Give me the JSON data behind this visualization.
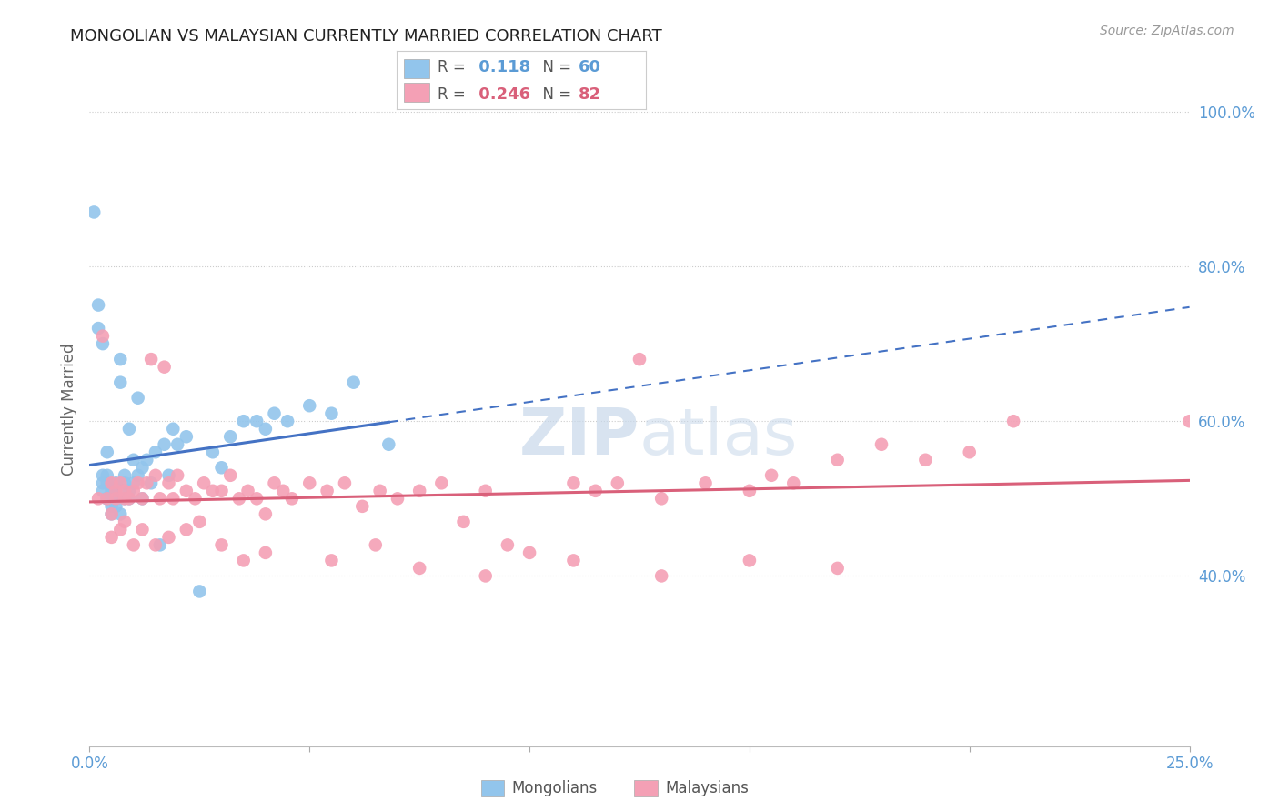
{
  "title": "MONGOLIAN VS MALAYSIAN CURRENTLY MARRIED CORRELATION CHART",
  "source": "Source: ZipAtlas.com",
  "ylabel": "Currently Married",
  "right_yticks": [
    "40.0%",
    "60.0%",
    "80.0%",
    "100.0%"
  ],
  "right_ytick_vals": [
    0.4,
    0.6,
    0.8,
    1.0
  ],
  "mongolian_R": 0.118,
  "mongolian_N": 60,
  "malaysian_R": 0.246,
  "malaysian_N": 82,
  "mongolian_color": "#92C5EC",
  "malaysian_color": "#F4A0B5",
  "mongolian_line_color": "#4472C4",
  "malaysian_line_color": "#D9607A",
  "background_color": "#FFFFFF",
  "grid_color": "#CCCCCC",
  "watermark_color": "#C8D8EA",
  "title_color": "#222222",
  "right_axis_color": "#5B9BD5",
  "xlim": [
    0.0,
    0.25
  ],
  "ylim": [
    0.18,
    1.05
  ],
  "mong_x": [
    0.001,
    0.002,
    0.002,
    0.003,
    0.003,
    0.003,
    0.003,
    0.004,
    0.004,
    0.004,
    0.004,
    0.004,
    0.005,
    0.005,
    0.005,
    0.005,
    0.005,
    0.005,
    0.006,
    0.006,
    0.006,
    0.006,
    0.006,
    0.007,
    0.007,
    0.007,
    0.008,
    0.008,
    0.008,
    0.009,
    0.009,
    0.009,
    0.01,
    0.01,
    0.011,
    0.011,
    0.012,
    0.012,
    0.013,
    0.014,
    0.015,
    0.016,
    0.017,
    0.018,
    0.019,
    0.02,
    0.022,
    0.025,
    0.028,
    0.03,
    0.032,
    0.035,
    0.038,
    0.04,
    0.042,
    0.045,
    0.05,
    0.055,
    0.06,
    0.068
  ],
  "mong_y": [
    0.87,
    0.75,
    0.72,
    0.53,
    0.52,
    0.51,
    0.7,
    0.5,
    0.52,
    0.56,
    0.53,
    0.5,
    0.5,
    0.51,
    0.5,
    0.5,
    0.49,
    0.48,
    0.5,
    0.51,
    0.52,
    0.5,
    0.49,
    0.68,
    0.65,
    0.48,
    0.5,
    0.53,
    0.52,
    0.51,
    0.5,
    0.59,
    0.52,
    0.55,
    0.53,
    0.63,
    0.5,
    0.54,
    0.55,
    0.52,
    0.56,
    0.44,
    0.57,
    0.53,
    0.59,
    0.57,
    0.58,
    0.38,
    0.56,
    0.54,
    0.58,
    0.6,
    0.6,
    0.59,
    0.61,
    0.6,
    0.62,
    0.61,
    0.65,
    0.57
  ],
  "malay_x": [
    0.002,
    0.003,
    0.004,
    0.005,
    0.005,
    0.006,
    0.006,
    0.007,
    0.008,
    0.008,
    0.009,
    0.01,
    0.011,
    0.012,
    0.013,
    0.014,
    0.015,
    0.016,
    0.017,
    0.018,
    0.019,
    0.02,
    0.022,
    0.024,
    0.026,
    0.028,
    0.03,
    0.032,
    0.034,
    0.036,
    0.038,
    0.04,
    0.042,
    0.044,
    0.046,
    0.05,
    0.054,
    0.058,
    0.062,
    0.066,
    0.07,
    0.075,
    0.08,
    0.085,
    0.09,
    0.095,
    0.1,
    0.11,
    0.115,
    0.12,
    0.125,
    0.13,
    0.14,
    0.15,
    0.155,
    0.16,
    0.17,
    0.18,
    0.19,
    0.2,
    0.005,
    0.007,
    0.008,
    0.01,
    0.012,
    0.015,
    0.018,
    0.022,
    0.025,
    0.03,
    0.035,
    0.04,
    0.055,
    0.065,
    0.075,
    0.09,
    0.11,
    0.13,
    0.15,
    0.17,
    0.21,
    0.25
  ],
  "malay_y": [
    0.5,
    0.71,
    0.5,
    0.48,
    0.52,
    0.51,
    0.5,
    0.52,
    0.5,
    0.51,
    0.5,
    0.51,
    0.52,
    0.5,
    0.52,
    0.68,
    0.53,
    0.5,
    0.67,
    0.52,
    0.5,
    0.53,
    0.51,
    0.5,
    0.52,
    0.51,
    0.51,
    0.53,
    0.5,
    0.51,
    0.5,
    0.48,
    0.52,
    0.51,
    0.5,
    0.52,
    0.51,
    0.52,
    0.49,
    0.51,
    0.5,
    0.51,
    0.52,
    0.47,
    0.51,
    0.44,
    0.43,
    0.52,
    0.51,
    0.52,
    0.68,
    0.5,
    0.52,
    0.51,
    0.53,
    0.52,
    0.55,
    0.57,
    0.55,
    0.56,
    0.45,
    0.46,
    0.47,
    0.44,
    0.46,
    0.44,
    0.45,
    0.46,
    0.47,
    0.44,
    0.42,
    0.43,
    0.42,
    0.44,
    0.41,
    0.4,
    0.42,
    0.4,
    0.42,
    0.41,
    0.6,
    0.6
  ]
}
